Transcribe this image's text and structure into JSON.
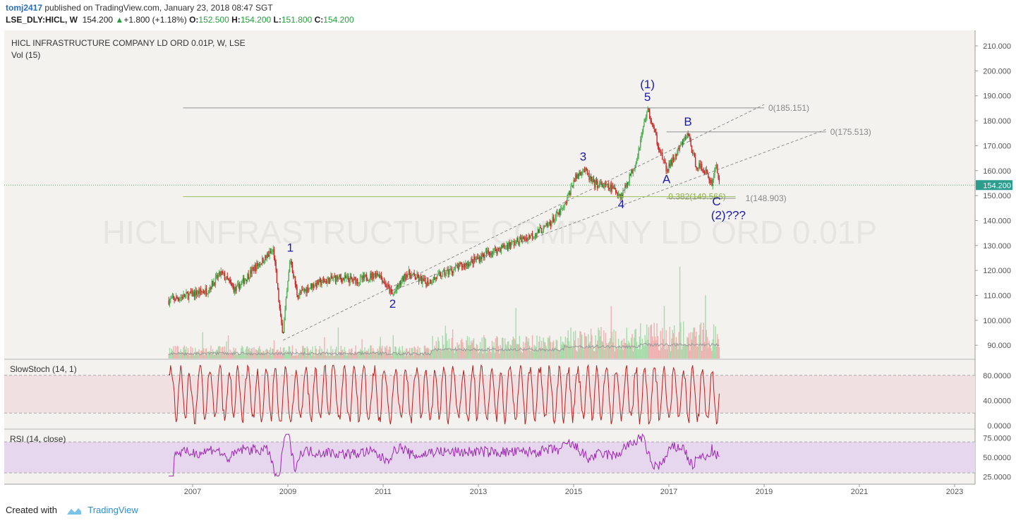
{
  "header": {
    "user": "tomj2417",
    "published_text": "published on TradingView.com, January 23, 2018 08:47 SGT",
    "symbol": "LSE_DLY:HICL, W",
    "last": "154.200",
    "change": "+1.800 (+1.18%)",
    "open_label": "O:",
    "open": "152.500",
    "high_label": "H:",
    "high": "154.200",
    "low_label": "L:",
    "low": "151.800",
    "close_label": "C:",
    "close": "154.200"
  },
  "footer": {
    "created_with": "Created with",
    "brand": "TradingView"
  },
  "chart_data": {
    "type": "candlestick",
    "title": "HICL INFRASTRUCTURE COMPANY LD ORD 0.01P, W, LSE",
    "volume_label": "Vol (15)",
    "price_axis": {
      "min": 85,
      "max": 212,
      "ticks": [
        "210.000",
        "200.000",
        "190.000",
        "180.000",
        "170.000",
        "160.000",
        "150.000",
        "140.000",
        "130.000",
        "120.000",
        "110.000",
        "100.000",
        "90.000"
      ],
      "last_price_label": "154.200",
      "last_price": 154.2
    },
    "time_axis": {
      "ticks": [
        "2007",
        "2009",
        "2011",
        "2013",
        "2015",
        "2017",
        "2019",
        "2021",
        "2023"
      ]
    },
    "watermark": "HICL INFRASTRUCTURE COMPANY LD ORD 0.01P",
    "price_path": [
      {
        "t": 2006.5,
        "v": 108
      },
      {
        "t": 2006.9,
        "v": 110
      },
      {
        "t": 2007.3,
        "v": 112
      },
      {
        "t": 2007.6,
        "v": 119
      },
      {
        "t": 2007.9,
        "v": 112
      },
      {
        "t": 2008.3,
        "v": 121
      },
      {
        "t": 2008.7,
        "v": 128
      },
      {
        "t": 2008.85,
        "v": 100
      },
      {
        "t": 2008.9,
        "v": 95
      },
      {
        "t": 2009.05,
        "v": 125
      },
      {
        "t": 2009.2,
        "v": 110
      },
      {
        "t": 2009.5,
        "v": 114
      },
      {
        "t": 2010.0,
        "v": 117
      },
      {
        "t": 2010.5,
        "v": 116
      },
      {
        "t": 2010.9,
        "v": 119
      },
      {
        "t": 2011.2,
        "v": 110
      },
      {
        "t": 2011.5,
        "v": 119
      },
      {
        "t": 2011.9,
        "v": 115
      },
      {
        "t": 2012.3,
        "v": 119
      },
      {
        "t": 2012.8,
        "v": 123
      },
      {
        "t": 2013.2,
        "v": 127
      },
      {
        "t": 2013.6,
        "v": 130
      },
      {
        "t": 2014.0,
        "v": 133
      },
      {
        "t": 2014.4,
        "v": 137
      },
      {
        "t": 2014.8,
        "v": 145
      },
      {
        "t": 2015.0,
        "v": 156
      },
      {
        "t": 2015.2,
        "v": 161
      },
      {
        "t": 2015.4,
        "v": 155
      },
      {
        "t": 2015.8,
        "v": 153
      },
      {
        "t": 2016.0,
        "v": 150
      },
      {
        "t": 2016.3,
        "v": 163
      },
      {
        "t": 2016.55,
        "v": 185
      },
      {
        "t": 2016.75,
        "v": 172
      },
      {
        "t": 2016.95,
        "v": 160
      },
      {
        "t": 2017.2,
        "v": 168
      },
      {
        "t": 2017.4,
        "v": 175
      },
      {
        "t": 2017.55,
        "v": 163
      },
      {
        "t": 2017.75,
        "v": 160
      },
      {
        "t": 2017.9,
        "v": 155
      },
      {
        "t": 2018.0,
        "v": 163
      },
      {
        "t": 2018.06,
        "v": 154.2
      }
    ],
    "fibonacci": [
      {
        "label": "0(185.151)",
        "value": 185.151
      },
      {
        "label": "0(175.513)",
        "value": 175.513
      },
      {
        "label": "0.382(149.566)",
        "value": 149.566
      },
      {
        "label": "1(148.903)",
        "value": 148.903
      }
    ],
    "wave_labels": [
      {
        "text": "1",
        "t": 2009.05,
        "v": 127.5
      },
      {
        "text": "2",
        "t": 2011.2,
        "v": 105
      },
      {
        "text": "3",
        "t": 2015.2,
        "v": 164
      },
      {
        "text": "4",
        "t": 2016.0,
        "v": 145
      },
      {
        "text": "(1)",
        "t": 2016.55,
        "v": 193
      },
      {
        "text": "5",
        "t": 2016.55,
        "v": 188
      },
      {
        "text": "A",
        "t": 2016.95,
        "v": 155
      },
      {
        "text": "B",
        "t": 2017.4,
        "v": 178
      },
      {
        "text": "C",
        "t": 2018.0,
        "v": 146
      },
      {
        "text": "(2)???",
        "t": 2018.25,
        "v": 140.5
      }
    ],
    "indicators": [
      {
        "name": "SlowStoch (14, 1)",
        "ticks": [
          "80.0000",
          "40.0000",
          "0.0000"
        ],
        "band": [
          20,
          80
        ],
        "color": "#b22222"
      },
      {
        "name": "RSI (14, close)",
        "ticks": [
          "75.0000",
          "50.0000",
          "25.0000"
        ],
        "band": [
          30,
          70
        ],
        "color": "#9c27b0"
      }
    ],
    "colors": {
      "up": "#4caf50",
      "down": "#c62828",
      "label_blue": "#1a1aa8",
      "fib_green": "#9bc25a",
      "fib_gray": "#888888"
    }
  }
}
